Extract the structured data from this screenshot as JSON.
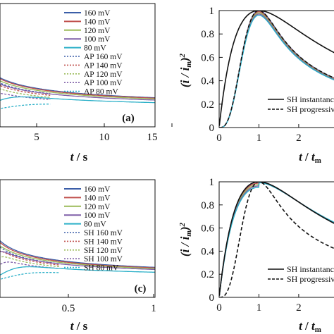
{
  "colors": {
    "160": "#3b5ea8",
    "140": "#c0504d",
    "120": "#9bbb59",
    "100": "#7f5fa8",
    "80": "#2cb0c8",
    "sh": "#111111"
  },
  "chart_data": [
    {
      "id": "a",
      "type": "line",
      "panel_label": "(a)",
      "xlabel": "t / s",
      "xlim": [
        -1,
        15
      ],
      "xticks": [
        "5",
        "10",
        "15"
      ],
      "legend": [
        "160 mV",
        "140 mV",
        "120 mV",
        "100 mV",
        "80 mV",
        "AP 160 mV",
        "AP 140 mV",
        "AP 120 mV",
        "AP 100 mV",
        "AP 80 mV"
      ]
    },
    {
      "id": "b",
      "type": "line",
      "xlabel": "t / t_m",
      "ylabel": "(i / i_m)^2",
      "xlim": [
        0,
        3.1
      ],
      "ylim": [
        0,
        1
      ],
      "xticks": [
        "0",
        "1",
        "2"
      ],
      "yticks": [
        "0",
        "0.2",
        "0.4",
        "0.6",
        "0.8",
        "1"
      ],
      "legend": [
        "SH instantanc",
        "SH progressiv"
      ]
    },
    {
      "id": "c",
      "type": "line",
      "panel_label": "(c)",
      "xlabel": "t / s",
      "xlim": [
        -0.05,
        1
      ],
      "xticks": [
        "0.5",
        "1"
      ],
      "legend": [
        "160 mV",
        "140 mV",
        "120 mV",
        "100 mV",
        "80 mV",
        "SH 160 mV",
        "SH 140 mV",
        "SH 120 mV",
        "SH 100 mV",
        "SH 80 mV"
      ]
    },
    {
      "id": "d",
      "type": "line",
      "xlabel": "t / t_m",
      "ylabel": "(i / i_m)^2",
      "xlim": [
        0,
        3.1
      ],
      "ylim": [
        0,
        1
      ],
      "xticks": [
        "0",
        "1",
        "2"
      ],
      "yticks": [
        "0",
        "0.2",
        "0.4",
        "0.6",
        "0.8",
        "1"
      ],
      "legend": [
        "SH instantanc",
        "SH progressiv"
      ]
    }
  ]
}
